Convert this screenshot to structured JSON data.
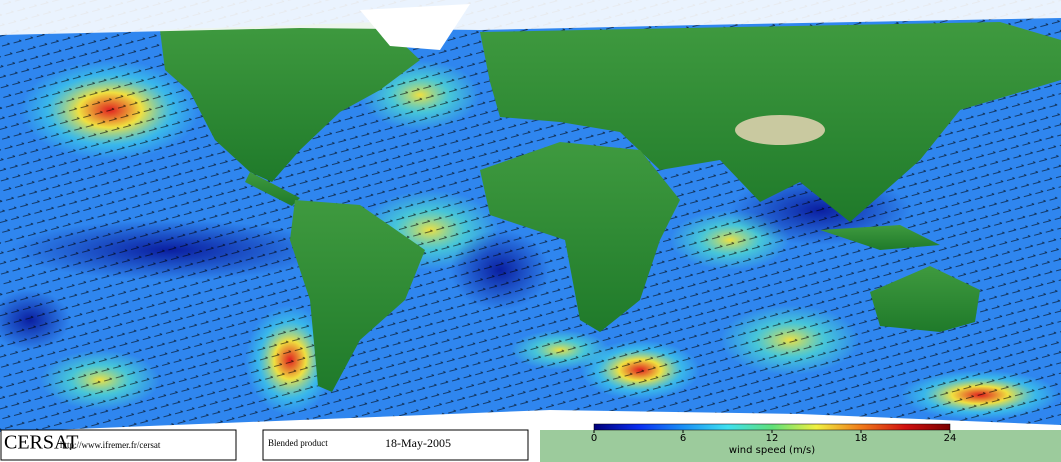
{
  "header": {
    "logo": "CERSAT",
    "url": "http://www.ifremer.fr/cersat",
    "product": "Blended product",
    "date": "18-May-2005"
  },
  "colorbar": {
    "label": "wind speed (m/s)",
    "lim": [
      0,
      24
    ],
    "ticks": [
      0,
      6,
      12,
      18,
      24
    ],
    "colors": [
      "#00007a",
      "#0a2df0",
      "#1a8ff5",
      "#3fe0f0",
      "#5fe07a",
      "#f0f040",
      "#f07a1a",
      "#d01010",
      "#7a0000"
    ]
  }
}
